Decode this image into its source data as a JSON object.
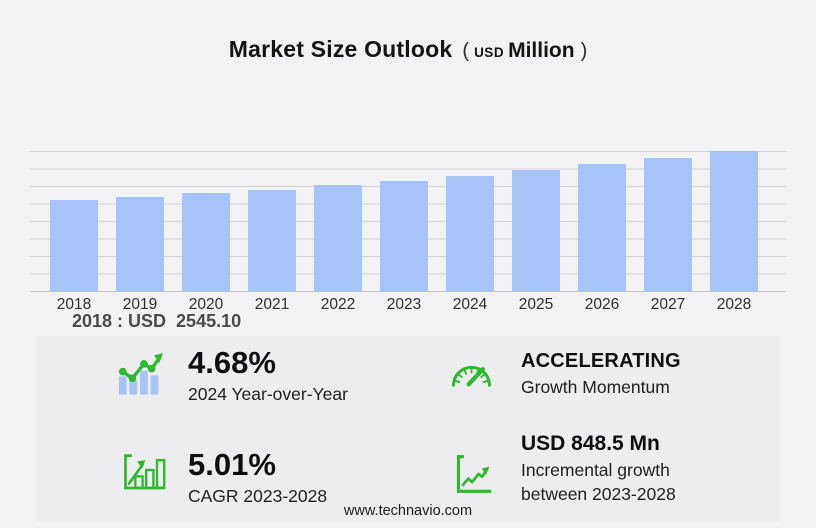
{
  "title": {
    "main": "Market Size Outlook",
    "open_paren": "(",
    "currency": "USD",
    "unit": "Million",
    "close_paren": ")"
  },
  "chart_data": {
    "type": "bar",
    "title": "Market Size Outlook (USD Million)",
    "unit": "USD Million",
    "categories": [
      "2018",
      "2019",
      "2020",
      "2021",
      "2022",
      "2023",
      "2024",
      "2025",
      "2026",
      "2027",
      "2028"
    ],
    "values": [
      2545.1,
      2615,
      2740,
      2810,
      2945,
      3060,
      3205,
      3370,
      3540,
      3720,
      3910
    ],
    "ylim": [
      0,
      3950
    ],
    "grid": "horizontal-only",
    "legend": "none",
    "bar_color": "#a7c4f9",
    "annotation": "2018 : USD  2545.10"
  },
  "tooltip": {
    "text": "2018 : USD  2545.10"
  },
  "stats": {
    "yoy": {
      "icon": "growth-trend-icon",
      "value": "4.68%",
      "label": "2024 Year-over-Year"
    },
    "momentum": {
      "icon": "speedometer-icon",
      "value": "ACCELERATING",
      "label": "Growth Momentum"
    },
    "cagr": {
      "icon": "cagr-bars-icon",
      "value": "5.01%",
      "label": "CAGR 2023-2028"
    },
    "incremental": {
      "icon": "incremental-growth-icon",
      "value": "USD 848.5 Mn",
      "label": "Incremental growth between 2023-2028"
    }
  },
  "footer": {
    "website": "www.technavio.com"
  },
  "colors": {
    "accent_green": "#2eb82e",
    "bar_blue": "#a7c4f9",
    "page_bg": "#f2f2f4",
    "panel_bg": "#ededef",
    "gridline": "#d2d2d4"
  }
}
